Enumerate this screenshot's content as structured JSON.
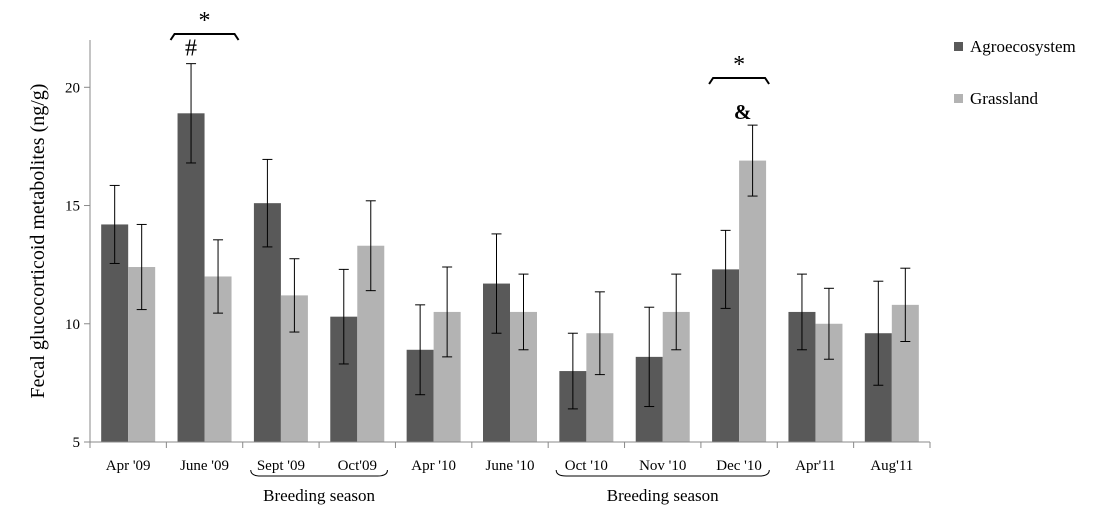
{
  "chart_data": {
    "type": "bar",
    "title": "",
    "xlabel": "",
    "ylabel": "Fecal glucocorticoid metabolites (ng/g)",
    "ylim": [
      5,
      22
    ],
    "yticks": [
      5,
      10,
      15,
      20
    ],
    "grid": false,
    "legend_position": "top-right",
    "categories": [
      "Apr '09",
      "June '09",
      "Sept '09",
      "Oct'09",
      "Apr '10",
      "June '10",
      "Oct '10",
      "Nov '10",
      "Dec '10",
      "Apr'11",
      "Aug'11"
    ],
    "series": [
      {
        "name": "Agroecosystem",
        "color": "#595959",
        "values": [
          14.2,
          18.9,
          15.1,
          10.3,
          8.9,
          11.7,
          8.0,
          8.6,
          12.3,
          10.5,
          9.6
        ],
        "error": [
          1.65,
          2.1,
          1.85,
          2.0,
          1.9,
          2.1,
          1.6,
          2.1,
          1.65,
          1.6,
          2.2
        ]
      },
      {
        "name": "Grassland",
        "color": "#b3b3b3",
        "values": [
          12.4,
          12.0,
          11.2,
          13.3,
          10.5,
          10.5,
          9.6,
          10.5,
          16.9,
          10.0,
          10.8
        ],
        "error": [
          1.8,
          1.55,
          1.55,
          1.9,
          1.9,
          1.6,
          1.75,
          1.6,
          1.5,
          1.5,
          1.55
        ]
      }
    ],
    "annotations": [
      {
        "category_index": 1,
        "marks": [
          "*",
          "#"
        ]
      },
      {
        "category_index": 8,
        "marks": [
          "*",
          "&"
        ]
      }
    ],
    "groups": [
      {
        "label": "Breeding season",
        "from": 2,
        "to": 3
      },
      {
        "label": "Breeding season",
        "from": 6,
        "to": 8
      }
    ]
  }
}
